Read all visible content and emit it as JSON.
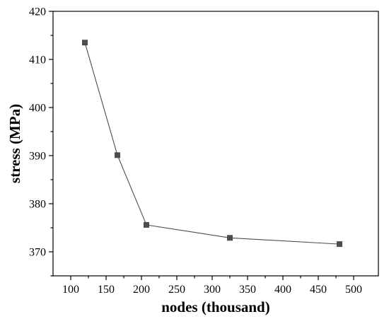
{
  "chart_data": {
    "type": "line",
    "xlabel": "nodes (thousand)",
    "ylabel": "stress (MPa)",
    "xlim": [
      75,
      535
    ],
    "ylim": [
      365,
      420
    ],
    "xticks": [
      100,
      150,
      200,
      250,
      300,
      350,
      400,
      450,
      500
    ],
    "yticks": [
      370,
      380,
      390,
      400,
      410,
      420
    ],
    "grid": false,
    "legend": "none",
    "series": [
      {
        "x": [
          120,
          166,
          207,
          325,
          480
        ],
        "y": [
          413.5,
          390.1,
          375.6,
          372.9,
          371.6
        ],
        "color": "#4d4d4d",
        "marker": "square"
      }
    ]
  }
}
